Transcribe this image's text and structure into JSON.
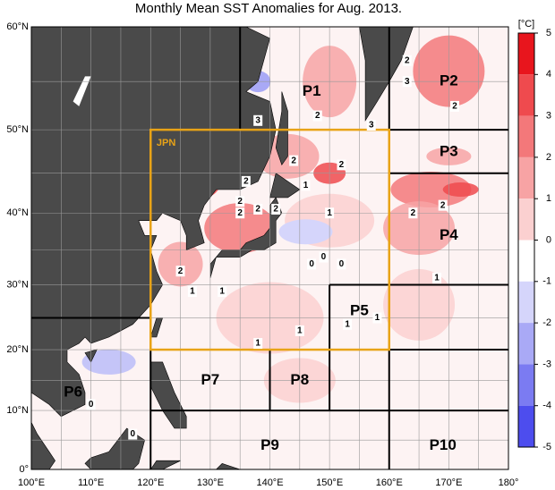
{
  "title": "Monthly Mean SST Anomalies for Aug. 2013.",
  "map": {
    "lon_labels": [
      "100°E",
      "110°E",
      "120°E",
      "130°E",
      "140°E",
      "150°E",
      "160°E",
      "170°E",
      "180°"
    ],
    "lat_labels": [
      "60°N",
      "50°N",
      "40°N",
      "30°N",
      "20°N",
      "10°N",
      "0°"
    ],
    "jpn_label": "JPN",
    "regions": [
      "P1",
      "P2",
      "P3",
      "P4",
      "P5",
      "P6",
      "P7",
      "P8",
      "P9",
      "P10"
    ],
    "contour_labels": [
      "2",
      "3",
      "2",
      "3",
      "2",
      "2",
      "3",
      "2",
      "2",
      "2",
      "2",
      "1",
      "2",
      "1",
      "2",
      "2",
      "2",
      "0",
      "0",
      "0",
      "2",
      "1",
      "1",
      "1",
      "1",
      "1",
      "1",
      "1",
      "0",
      "0"
    ]
  },
  "colorbar": {
    "unit": "[°C]",
    "ticks": [
      5,
      4,
      3,
      2,
      1,
      0,
      -1,
      -2,
      -3,
      -4,
      -5
    ],
    "colors": [
      "#e8151d",
      "#ef4a4e",
      "#f3787a",
      "#f7a3a4",
      "#fbd0d0",
      "#ffffff",
      "#d5d5fb",
      "#a9a9f6",
      "#7b7bf2",
      "#4d4dee",
      "#1b1bea"
    ]
  }
}
